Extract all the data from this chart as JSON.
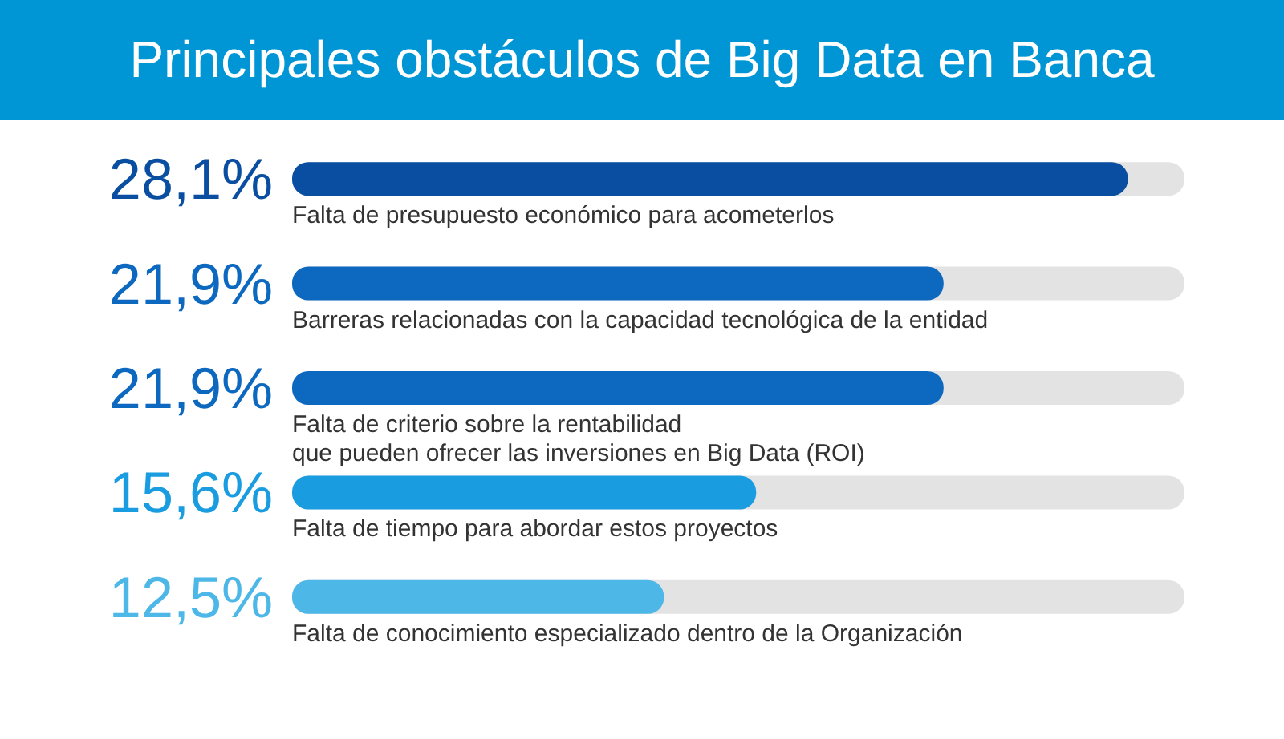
{
  "chart_data": {
    "type": "bar",
    "orientation": "horizontal",
    "title": "Principales obstáculos de Big Data en Banca",
    "categories": [
      "Falta de presupuesto económico para acometerlos",
      "Barreras relacionadas con la capacidad tecnológica de la entidad",
      "Falta de criterio sobre la rentabilidad\nque pueden ofrecer las inversiones en Big Data (ROI)",
      "Falta de tiempo para abordar estos proyectos",
      "Falta de conocimiento especializado dentro de la Organización"
    ],
    "values": [
      28.1,
      21.9,
      21.9,
      15.6,
      12.5
    ],
    "colors": [
      "#0a4ea2",
      "#0d68bf",
      "#0d68bf",
      "#1a9de0",
      "#4db7e8"
    ],
    "value_labels": [
      "28,1%",
      "21,9%",
      "21,9%",
      "15,6%",
      "12,5%"
    ],
    "xlim": [
      0,
      30
    ],
    "tick_labels": false
  }
}
